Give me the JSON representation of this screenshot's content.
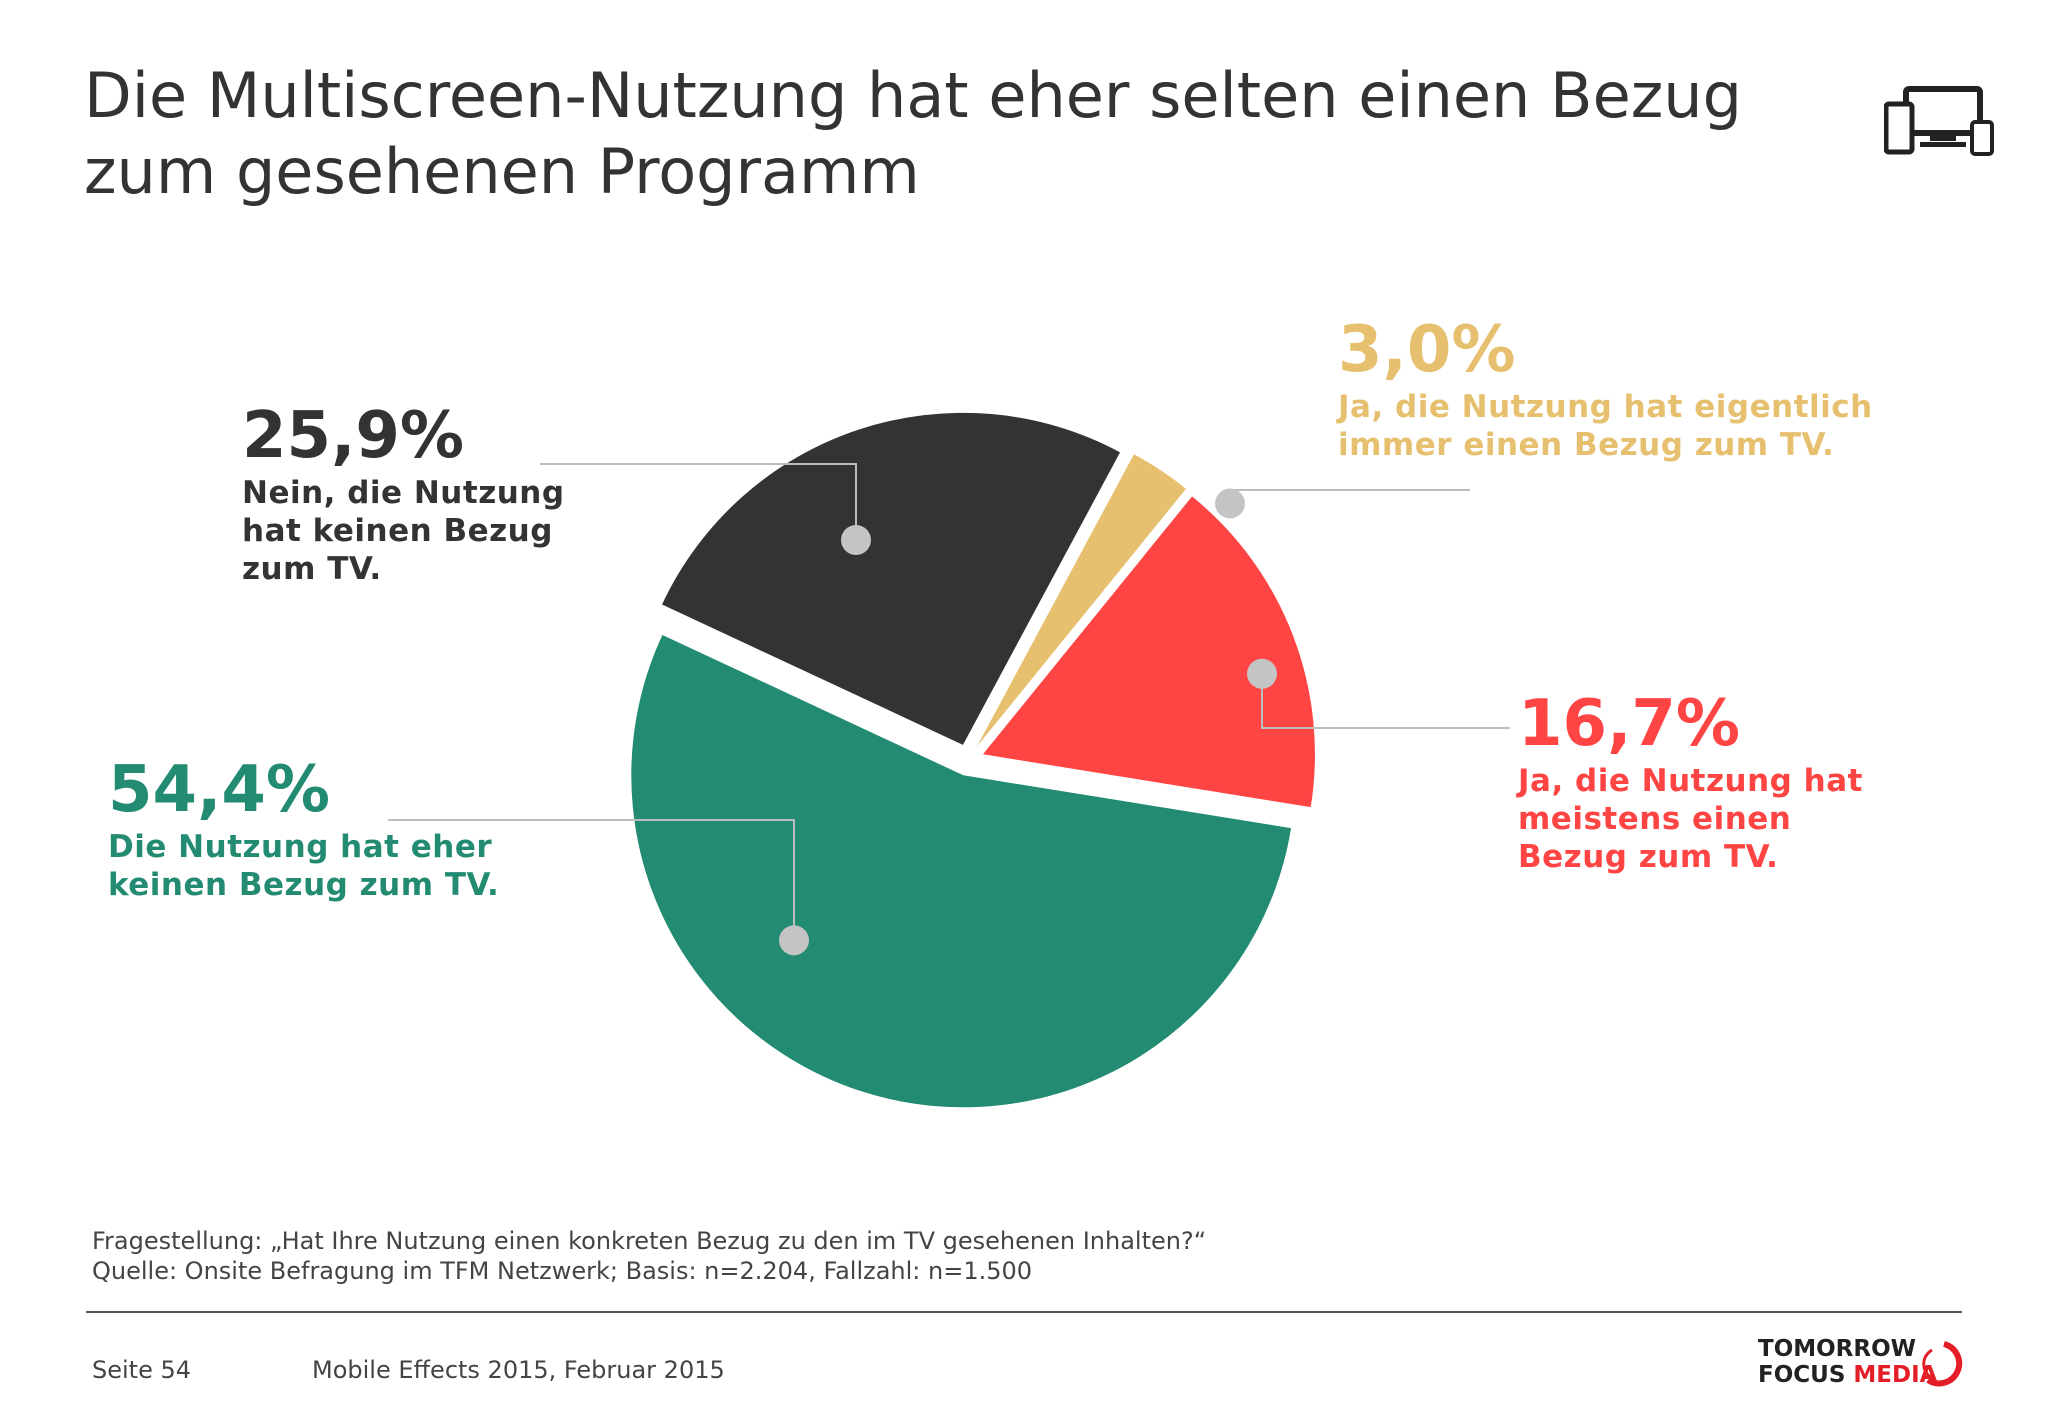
{
  "title": "Die Multiscreen-Nutzung hat eher selten einen Bezug zum gesehenen Programm",
  "header_icon": "multiscreen-devices-icon",
  "chart_data": {
    "type": "pie",
    "slices": [
      {
        "value": 25.9,
        "label": "25,9%",
        "desc": "Nein, die Nutzung hat keinen Bezug zum TV.",
        "color": "#333333"
      },
      {
        "value": 3.0,
        "label": "3,0%",
        "desc": "Ja, die Nutzung hat eigentlich immer einen Bezug zum TV.",
        "color": "#e6c06e"
      },
      {
        "value": 16.7,
        "label": "16,7%",
        "desc": "Ja, die Nutzung hat meistens einen Bezug zum TV.",
        "color": "#ff4444"
      },
      {
        "value": 54.4,
        "label": "54,4%",
        "desc": "Die Nutzung hat eher keinen Bezug zum TV.",
        "color": "#228b72"
      }
    ]
  },
  "footnote": {
    "question": "Fragestellung: „Hat Ihre Nutzung einen konkreten Bezug zu den im TV gesehenen Inhalten?“",
    "source": "Quelle: Onsite Befragung im TFM Netzwerk; Basis: n=2.204, Fallzahl: n=1.500"
  },
  "footer": {
    "page": "Seite 54",
    "report": "Mobile Effects 2015, Februar 2015"
  },
  "logo": {
    "line1": "TOMORROW",
    "line2a": "FOCUS ",
    "line2b": "MEDIA"
  }
}
